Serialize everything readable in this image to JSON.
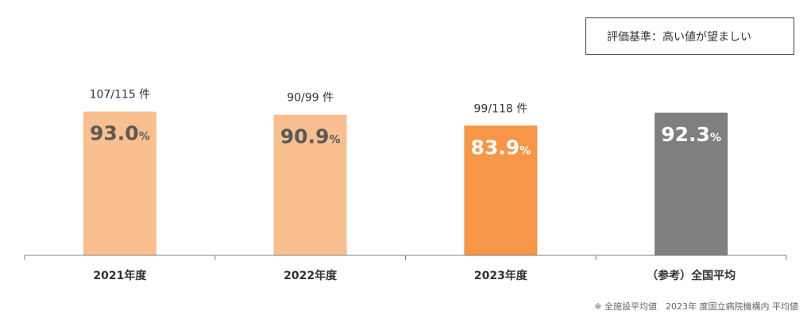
{
  "criterion": "評価基準：高い値が望ましい",
  "footnote": "※ 全施設平均値　2023年 度国立病院機構内 平均値",
  "chart_data": {
    "type": "bar",
    "categories": [
      "2021年度",
      "2022年度",
      "2023年度",
      "（参考）全国平均"
    ],
    "values": [
      93.0,
      90.9,
      83.9,
      92.3
    ],
    "value_labels": [
      "93.0",
      "90.9",
      "83.9",
      "92.3"
    ],
    "unit": "%",
    "counts": [
      "107/115 件",
      "90/99 件",
      "99/118 件",
      ""
    ],
    "colors": [
      "#F9BF8F",
      "#F9BF8F",
      "#F79646",
      "#7F7F7F"
    ],
    "value_text_colors": [
      "#595959",
      "#595959",
      "#ffffff",
      "#ffffff"
    ],
    "axis_line_color": "#808080",
    "ylim": [
      0,
      100
    ],
    "grid": false,
    "legend": false
  }
}
